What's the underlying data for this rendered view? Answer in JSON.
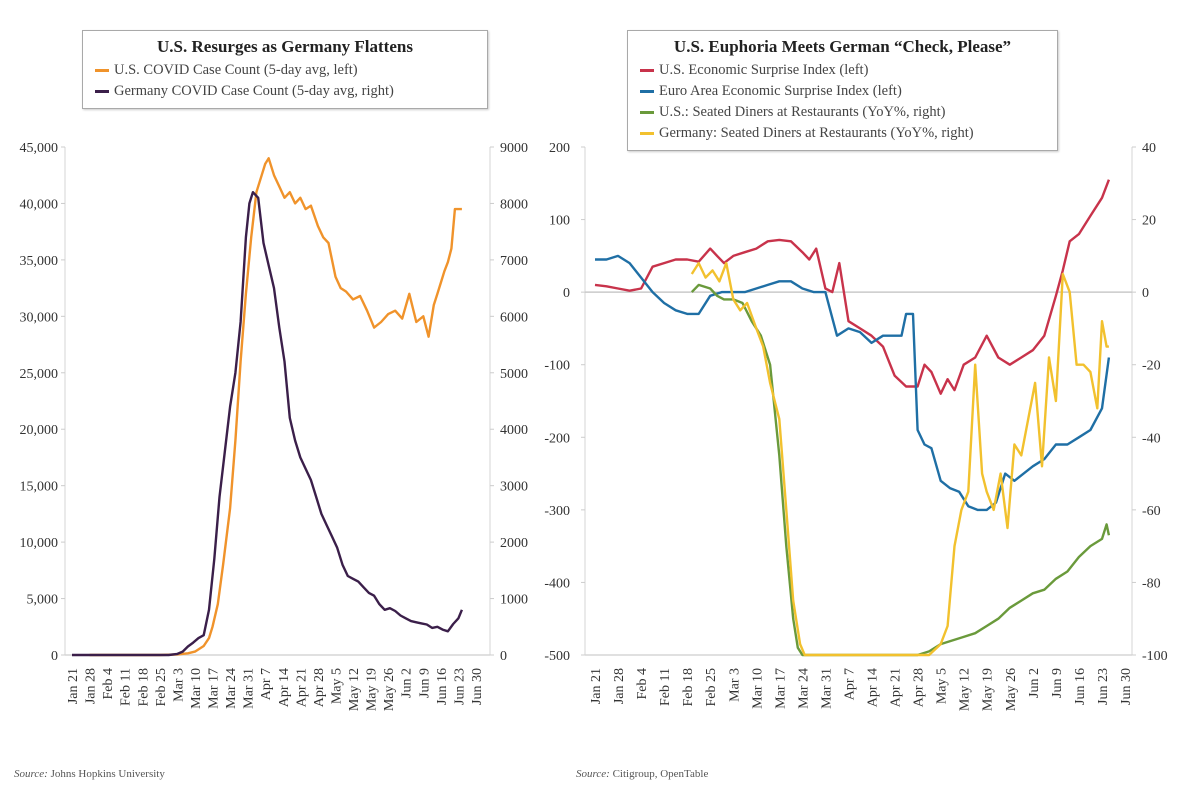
{
  "chart_data": [
    {
      "type": "line",
      "title": "U.S. Resurges as Germany Flattens",
      "x_ticks": [
        "Jan 21",
        "Jan 28",
        "Feb 4",
        "Feb 11",
        "Feb 18",
        "Feb 25",
        "Mar 3",
        "Mar 10",
        "Mar 17",
        "Mar 24",
        "Mar 31",
        "Apr 7",
        "Apr 14",
        "Apr 21",
        "Apr 28",
        "May 5",
        "May 12",
        "May 19",
        "May 26",
        "Jun 2",
        "Jun 9",
        "Jun 16",
        "Jun 23",
        "Jun 30"
      ],
      "y_left": {
        "min": 0,
        "max": 45000,
        "ticks": [
          "0",
          "5,000",
          "10,000",
          "15,000",
          "20,000",
          "25,000",
          "30,000",
          "35,000",
          "40,000",
          "45,000"
        ]
      },
      "y_right": {
        "min": 0,
        "max": 9000,
        "ticks": [
          "0",
          "1000",
          "2000",
          "3000",
          "4000",
          "5000",
          "6000",
          "7000",
          "8000",
          "9000"
        ]
      },
      "legend": "top",
      "series": [
        {
          "name": "U.S. COVID Case Count (5-day avg, left)",
          "axis": "left",
          "color": "#f0932b",
          "x_weeks": [
            1,
            5,
            6,
            6.6,
            7,
            7.5,
            7.8,
            8,
            8.3,
            8.6,
            9,
            9.3,
            9.6,
            9.9,
            10.2,
            10.5,
            10.8,
            11.0,
            11.2,
            11.5,
            11.8,
            12.1,
            12.4,
            12.7,
            13,
            13.3,
            13.6,
            14,
            14.3,
            14.6,
            15,
            15.3,
            15.6,
            16,
            16.4,
            16.8,
            17.2,
            17.6,
            18,
            18.4,
            18.8,
            19.2,
            19.6,
            20,
            20.3,
            20.6,
            20.8,
            21,
            21.2,
            21.4,
            21.6,
            21.8,
            22,
            22.2
          ],
          "values": [
            0,
            0,
            50,
            150,
            300,
            800,
            1500,
            2500,
            4500,
            8000,
            13000,
            19000,
            26000,
            32000,
            37000,
            41000,
            42500,
            43500,
            44000,
            42500,
            41500,
            40500,
            41000,
            40000,
            40500,
            39500,
            39800,
            38000,
            37000,
            36500,
            33500,
            32500,
            32200,
            31500,
            31800,
            30500,
            29000,
            29500,
            30200,
            30500,
            29800,
            32000,
            29500,
            30000,
            28200,
            31000,
            32000,
            33000,
            34000,
            34800,
            36000,
            39500,
            39500,
            39500
          ]
        },
        {
          "name": "Germany COVID Case Count (5-day avg, right)",
          "axis": "right",
          "color": "#3b1f4a",
          "x_weeks": [
            0,
            5.5,
            6,
            6.3,
            6.6,
            6.9,
            7.2,
            7.5,
            7.8,
            8.1,
            8.4,
            8.7,
            9.0,
            9.3,
            9.6,
            9.9,
            10.1,
            10.3,
            10.6,
            10.9,
            11.2,
            11.5,
            11.8,
            12.1,
            12.4,
            12.7,
            13,
            13.3,
            13.6,
            13.9,
            14.2,
            14.5,
            14.8,
            15.1,
            15.4,
            15.7,
            16,
            16.3,
            16.6,
            16.9,
            17.2,
            17.5,
            17.8,
            18.1,
            18.4,
            18.7,
            19,
            19.3,
            19.6,
            19.9,
            20.2,
            20.5,
            20.8,
            21.1,
            21.4,
            21.7,
            22.0,
            22.2
          ],
          "values": [
            0,
            0,
            20,
            60,
            150,
            220,
            300,
            350,
            800,
            1700,
            2800,
            3600,
            4400,
            5000,
            5900,
            7400,
            8000,
            8200,
            8100,
            7300,
            6900,
            6500,
            5800,
            5200,
            4200,
            3800,
            3500,
            3300,
            3100,
            2800,
            2500,
            2300,
            2100,
            1900,
            1600,
            1400,
            1350,
            1300,
            1200,
            1100,
            1050,
            900,
            800,
            830,
            780,
            700,
            650,
            600,
            580,
            560,
            540,
            480,
            500,
            450,
            420,
            550,
            650,
            800
          ]
        }
      ],
      "source": "Johns Hopkins University"
    },
    {
      "type": "line",
      "title": "U.S. Euphoria Meets German “Check, Please”",
      "x_ticks": [
        "Jan 21",
        "Jan 28",
        "Feb 4",
        "Feb 11",
        "Feb 18",
        "Feb 25",
        "Mar 3",
        "Mar 10",
        "Mar 17",
        "Mar 24",
        "Mar 31",
        "Apr 7",
        "Apr 14",
        "Apr 21",
        "Apr 28",
        "May 5",
        "May 12",
        "May 19",
        "May 26",
        "Jun 2",
        "Jun 9",
        "Jun 16",
        "Jun 23",
        "Jun 30"
      ],
      "y_left": {
        "min": -500,
        "max": 200,
        "ticks": [
          "-500",
          "-400",
          "-300",
          "-200",
          "-100",
          "0",
          "100",
          "200"
        ]
      },
      "y_right": {
        "min": -100,
        "max": 40,
        "ticks": [
          "-100",
          "-80",
          "-60",
          "-40",
          "-20",
          "0",
          "20",
          "40"
        ]
      },
      "reference_line": {
        "axis": "left",
        "value": 0
      },
      "legend": "top",
      "series": [
        {
          "name": "U.S. Economic Surprise Index (left)",
          "axis": "left",
          "color": "#c8334b",
          "x_weeks": [
            0,
            0.5,
            1,
            1.5,
            2,
            2.5,
            3,
            3.5,
            4,
            4.5,
            5,
            5.3,
            5.6,
            6,
            6.5,
            7,
            7.5,
            8,
            8.5,
            9,
            9.3,
            9.6,
            10,
            10.3,
            10.6,
            11,
            11.5,
            12,
            12.5,
            13,
            13.5,
            14,
            14.3,
            14.6,
            15,
            15.3,
            15.6,
            16,
            16.5,
            17,
            17.5,
            18,
            18.5,
            19,
            19.5,
            20,
            20.3,
            20.6,
            21,
            21.5,
            22,
            22.3
          ],
          "values": [
            10,
            8,
            5,
            2,
            5,
            35,
            40,
            45,
            45,
            42,
            60,
            50,
            40,
            50,
            55,
            60,
            70,
            72,
            70,
            55,
            45,
            60,
            5,
            0,
            40,
            -40,
            -50,
            -60,
            -75,
            -115,
            -130,
            -130,
            -100,
            -110,
            -140,
            -120,
            -135,
            -100,
            -90,
            -60,
            -90,
            -100,
            -90,
            -80,
            -60,
            -5,
            30,
            70,
            80,
            105,
            130,
            155
          ]
        },
        {
          "name": "Euro Area Economic Surprise Index (left)",
          "axis": "left",
          "color": "#1f6fa5",
          "x_weeks": [
            0,
            0.5,
            1,
            1.5,
            2,
            2.5,
            3,
            3.5,
            4,
            4.5,
            5,
            5.5,
            6,
            6.5,
            7,
            7.5,
            8,
            8.5,
            9,
            9.5,
            10,
            10.5,
            11,
            11.5,
            12,
            12.5,
            13,
            13.3,
            13.5,
            13.8,
            14,
            14.3,
            14.6,
            15,
            15.4,
            15.8,
            16.2,
            16.6,
            17,
            17.4,
            17.8,
            18.2,
            18.6,
            19,
            19.5,
            20,
            20.5,
            21,
            21.5,
            22,
            22.3
          ],
          "values": [
            45,
            45,
            50,
            40,
            20,
            0,
            -15,
            -25,
            -30,
            -30,
            -5,
            0,
            0,
            0,
            5,
            10,
            15,
            15,
            5,
            0,
            0,
            -60,
            -50,
            -55,
            -70,
            -60,
            -60,
            -60,
            -30,
            -30,
            -190,
            -210,
            -215,
            -260,
            -270,
            -275,
            -295,
            -300,
            -300,
            -290,
            -250,
            -260,
            -250,
            -240,
            -230,
            -210,
            -210,
            -200,
            -190,
            -160,
            -90
          ]
        },
        {
          "name": "U.S.: Seated Diners at Restaurants (YoY%, right)",
          "axis": "right",
          "color": "#6a9a3b",
          "x_weeks": [
            4.2,
            4.5,
            5,
            5.3,
            5.6,
            6,
            6.4,
            6.8,
            7.2,
            7.6,
            8,
            8.3,
            8.6,
            8.8,
            9,
            9.5,
            10,
            11,
            12,
            13,
            14,
            14.5,
            15,
            15.5,
            16,
            16.5,
            17,
            17.5,
            18,
            18.5,
            19,
            19.5,
            20,
            20.5,
            21,
            21.5,
            22,
            22.2,
            22.3
          ],
          "values": [
            0,
            2,
            1,
            -1,
            -2,
            -2,
            -3,
            -8,
            -12,
            -20,
            -45,
            -70,
            -90,
            -98,
            -100,
            -100,
            -100,
            -100,
            -100,
            -100,
            -100,
            -99,
            -97,
            -96,
            -95,
            -94,
            -92,
            -90,
            -87,
            -85,
            -83,
            -82,
            -79,
            -77,
            -73,
            -70,
            -68,
            -64,
            -67
          ]
        },
        {
          "name": "Germany: Seated Diners at Restaurants (YoY%, right)",
          "axis": "right",
          "color": "#f2c12e",
          "x_weeks": [
            4.2,
            4.5,
            4.8,
            5.1,
            5.4,
            5.7,
            6,
            6.3,
            6.6,
            7,
            7.3,
            7.6,
            8,
            8.3,
            8.6,
            8.9,
            9.1,
            9.5,
            10,
            11,
            12,
            13,
            14,
            14.5,
            15,
            15.3,
            15.6,
            15.9,
            16.2,
            16.5,
            16.8,
            17,
            17.3,
            17.6,
            17.9,
            18.2,
            18.5,
            18.8,
            19.1,
            19.4,
            19.7,
            20,
            20.3,
            20.6,
            20.9,
            21.2,
            21.5,
            21.8,
            22,
            22.2,
            22.3
          ],
          "values": [
            5,
            8,
            4,
            6,
            3,
            8,
            -2,
            -5,
            -3,
            -10,
            -15,
            -25,
            -35,
            -60,
            -85,
            -97,
            -100,
            -100,
            -100,
            -100,
            -100,
            -100,
            -100,
            -100,
            -97,
            -92,
            -70,
            -60,
            -55,
            -20,
            -50,
            -55,
            -60,
            -50,
            -65,
            -42,
            -45,
            -35,
            -25,
            -48,
            -18,
            -30,
            5,
            0,
            -20,
            -20,
            -22,
            -32,
            -8,
            -15,
            -15
          ]
        }
      ],
      "source": "Citigroup, OpenTable"
    }
  ],
  "left_legend": {
    "title": "U.S. Resurges as Germany Flattens",
    "items": [
      "U.S. COVID Case Count (5-day avg, left)",
      "Germany COVID Case Count (5-day avg, right)"
    ]
  },
  "right_legend": {
    "title": "U.S. Euphoria Meets German “Check, Please”",
    "items": [
      "U.S. Economic Surprise Index (left)",
      "Euro Area Economic Surprise Index (left)",
      "U.S.: Seated Diners at Restaurants (YoY%, right)",
      "Germany: Seated Diners at Restaurants (YoY%, right)"
    ]
  },
  "sources": {
    "label": "Source:",
    "left": "Johns Hopkins University",
    "right": "Citigroup, OpenTable"
  }
}
